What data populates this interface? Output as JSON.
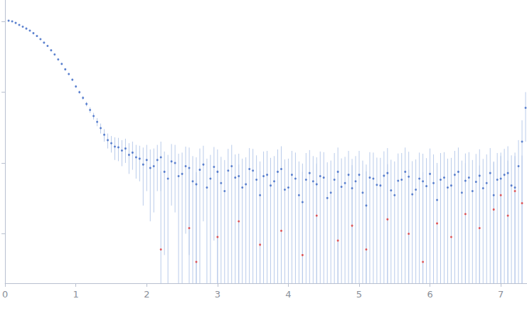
{
  "chart_data": {
    "type": "scatter",
    "log": "y",
    "tick_labels": "x",
    "grid": false,
    "xlim": [
      0,
      7.37
    ],
    "xticks": [
      0,
      1,
      2,
      3,
      4,
      5,
      6,
      7
    ],
    "ylim": [
      0.0002,
      2
    ],
    "yticks": [
      0.001,
      0.01,
      0.1,
      1
    ],
    "series": [
      {
        "color": "#3a66c4",
        "x": [
          0.05,
          0.1,
          0.15,
          0.2,
          0.25,
          0.3,
          0.35,
          0.4,
          0.45,
          0.5,
          0.55,
          0.6,
          0.65,
          0.7,
          0.75,
          0.8,
          0.85,
          0.9,
          0.95,
          1.0,
          1.05,
          1.1,
          1.15,
          1.2,
          1.25,
          1.3,
          1.35,
          1.4,
          1.45,
          1.5,
          1.55,
          1.6,
          1.65,
          1.7,
          1.75,
          1.8,
          1.85,
          1.9,
          1.95,
          2.0,
          2.05,
          2.1,
          2.15,
          2.2,
          2.25,
          2.3,
          2.35,
          2.4,
          2.45,
          2.5,
          2.55,
          2.6,
          2.65,
          2.7,
          2.75,
          2.8,
          2.85,
          2.9,
          2.95,
          3.0,
          3.05,
          3.1,
          3.15,
          3.2,
          3.25,
          3.3,
          3.35,
          3.4,
          3.45,
          3.5,
          3.55,
          3.6,
          3.65,
          3.7,
          3.75,
          3.8,
          3.85,
          3.9,
          3.95,
          4.0,
          4.05,
          4.1,
          4.15,
          4.2,
          4.25,
          4.3,
          4.35,
          4.4,
          4.45,
          4.5,
          4.55,
          4.6,
          4.65,
          4.7,
          4.75,
          4.8,
          4.85,
          4.9,
          4.95,
          5.0,
          5.05,
          5.1,
          5.15,
          5.2,
          5.25,
          5.3,
          5.35,
          5.4,
          5.45,
          5.5,
          5.55,
          5.6,
          5.65,
          5.7,
          5.75,
          5.8,
          5.85,
          5.9,
          5.95,
          6.0,
          6.05,
          6.1,
          6.15,
          6.2,
          6.25,
          6.3,
          6.35,
          6.4,
          6.45,
          6.5,
          6.55,
          6.6,
          6.65,
          6.7,
          6.75,
          6.8,
          6.85,
          6.9,
          6.95,
          7.0,
          7.05,
          7.1,
          7.15,
          7.2,
          7.25,
          7.3,
          7.35
        ],
        "values": [
          1.02,
          1.0,
          0.95,
          0.89,
          0.84,
          0.79,
          0.74,
          0.68,
          0.62,
          0.56,
          0.5,
          0.45,
          0.39,
          0.34,
          0.29,
          0.25,
          0.21,
          0.18,
          0.15,
          0.12,
          0.1,
          0.083,
          0.068,
          0.056,
          0.046,
          0.038,
          0.031,
          0.025,
          0.021,
          0.019,
          0.017,
          0.0166,
          0.015,
          0.016,
          0.013,
          0.014,
          0.012,
          0.0115,
          0.0095,
          0.011,
          0.0085,
          0.009,
          0.011,
          0.012,
          0.0075,
          0.006,
          0.0105,
          0.01,
          0.0065,
          0.007,
          0.009,
          0.0085,
          0.0055,
          0.005,
          0.008,
          0.0095,
          0.0045,
          0.006,
          0.0088,
          0.0075,
          0.0052,
          0.004,
          0.0078,
          0.009,
          0.0062,
          0.0065,
          0.0045,
          0.005,
          0.0082,
          0.0078,
          0.0058,
          0.0035,
          0.0065,
          0.0068,
          0.0048,
          0.0055,
          0.0075,
          0.0082,
          0.0042,
          0.0045,
          0.0068,
          0.006,
          0.0035,
          0.0028,
          0.0058,
          0.0072,
          0.0055,
          0.005,
          0.0065,
          0.0062,
          0.0032,
          0.0038,
          0.0058,
          0.0075,
          0.0046,
          0.0052,
          0.0068,
          0.0044,
          0.0055,
          0.0068,
          0.0038,
          0.0025,
          0.0062,
          0.006,
          0.0049,
          0.0048,
          0.0066,
          0.0072,
          0.0041,
          0.0035,
          0.0056,
          0.0058,
          0.0075,
          0.0064,
          0.0036,
          0.0042,
          0.006,
          0.0055,
          0.0047,
          0.007,
          0.0052,
          0.003,
          0.0058,
          0.0062,
          0.0045,
          0.0048,
          0.0068,
          0.0075,
          0.0038,
          0.0056,
          0.0062,
          0.004,
          0.0054,
          0.0066,
          0.0044,
          0.0052,
          0.0072,
          0.0035,
          0.0058,
          0.006,
          0.0068,
          0.0072,
          0.0048,
          0.0045,
          0.009,
          0.02,
          0.06
        ],
        "errors": [
          0.01,
          0.01,
          0.01,
          0.01,
          0.01,
          0.01,
          0.01,
          0.01,
          0.01,
          0.01,
          0.009,
          0.009,
          0.008,
          0.008,
          0.007,
          0.007,
          0.006,
          0.006,
          0.006,
          0.005,
          0.005,
          0.005,
          0.005,
          0.005,
          0.005,
          0.005,
          0.005,
          0.005,
          0.005,
          0.005,
          0.006,
          0.006,
          0.006,
          0.006,
          0.006,
          0.006,
          0.006,
          0.006,
          0.007,
          0.007,
          0.007,
          0.007,
          0.007,
          0.008,
          0.007,
          0.007,
          0.008,
          0.008,
          0.007,
          0.007,
          0.008,
          0.008,
          0.007,
          0.007,
          0.008,
          0.008,
          0.007,
          0.007,
          0.008,
          0.008,
          0.007,
          0.007,
          0.008,
          0.009,
          0.007,
          0.007,
          0.007,
          0.007,
          0.008,
          0.008,
          0.007,
          0.007,
          0.008,
          0.008,
          0.007,
          0.007,
          0.008,
          0.009,
          0.007,
          0.007,
          0.008,
          0.008,
          0.007,
          0.007,
          0.008,
          0.008,
          0.007,
          0.007,
          0.008,
          0.008,
          0.007,
          0.007,
          0.008,
          0.009,
          0.007,
          0.007,
          0.008,
          0.007,
          0.007,
          0.008,
          0.007,
          0.007,
          0.008,
          0.008,
          0.007,
          0.007,
          0.008,
          0.009,
          0.007,
          0.007,
          0.008,
          0.008,
          0.009,
          0.008,
          0.007,
          0.007,
          0.008,
          0.008,
          0.007,
          0.009,
          0.008,
          0.007,
          0.008,
          0.008,
          0.007,
          0.007,
          0.008,
          0.009,
          0.007,
          0.008,
          0.008,
          0.007,
          0.008,
          0.009,
          0.007,
          0.008,
          0.009,
          0.007,
          0.008,
          0.008,
          0.009,
          0.01,
          0.008,
          0.008,
          0.012,
          0.02,
          0.04
        ]
      },
      {
        "color": "#e03434",
        "x": [
          2.2,
          2.6,
          2.7,
          3.0,
          3.3,
          3.6,
          3.9,
          4.2,
          4.4,
          4.7,
          4.9,
          5.1,
          5.4,
          5.7,
          5.9,
          6.1,
          6.3,
          6.5,
          6.7,
          6.9,
          7.0,
          7.1,
          7.2,
          7.3
        ],
        "values": [
          0.0006,
          0.0012,
          0.0004,
          0.0009,
          0.0015,
          0.0007,
          0.0011,
          0.0005,
          0.0018,
          0.0008,
          0.0013,
          0.0006,
          0.0016,
          0.001,
          0.0004,
          0.0014,
          0.0009,
          0.0019,
          0.0012,
          0.0022,
          0.0035,
          0.0018,
          0.004,
          0.0027
        ],
        "errors": [
          0.007,
          0.007,
          0.007,
          0.007,
          0.008,
          0.007,
          0.008,
          0.007,
          0.008,
          0.007,
          0.008,
          0.007,
          0.008,
          0.007,
          0.007,
          0.008,
          0.007,
          0.008,
          0.008,
          0.008,
          0.009,
          0.009,
          0.01,
          0.01
        ]
      }
    ]
  }
}
